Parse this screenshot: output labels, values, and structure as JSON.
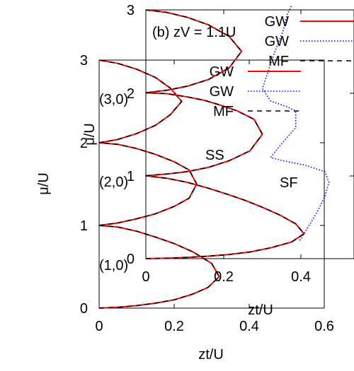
{
  "chart_data": [
    {
      "type": "line",
      "panel": "a",
      "xlabel": "zt/U",
      "ylabel": "μ/U",
      "xlim": [
        0,
        0.6
      ],
      "ylim": [
        0,
        3
      ],
      "xticks": [
        "0",
        "0.2",
        "0.4",
        "0.6"
      ],
      "yticks": [
        "0",
        "1",
        "2",
        "3"
      ],
      "annotations": [
        "(1,0)",
        "(2,0)",
        "(3,0)"
      ],
      "legend": {
        "placement": "top-right",
        "entries": [
          "GW",
          "GW",
          "MF"
        ]
      },
      "series": [
        {
          "name": "GW",
          "color": "#ff0000",
          "style": "solid",
          "lobes": [
            {
              "x": [
                0,
                0.05,
                0.1,
                0.15,
                0.2,
                0.25,
                0.29,
                0.32,
                0.3,
                0.25,
                0.2,
                0.15,
                0.1,
                0.05,
                0
              ],
              "y": [
                0,
                0.01,
                0.03,
                0.06,
                0.1,
                0.17,
                0.25,
                0.38,
                0.54,
                0.68,
                0.78,
                0.86,
                0.93,
                0.98,
                1.0
              ]
            },
            {
              "x": [
                0,
                0.05,
                0.1,
                0.15,
                0.2,
                0.24,
                0.26,
                0.24,
                0.2,
                0.15,
                0.1,
                0.05,
                0
              ],
              "y": [
                1.0,
                1.03,
                1.08,
                1.14,
                1.23,
                1.33,
                1.5,
                1.67,
                1.77,
                1.86,
                1.93,
                1.98,
                2.0
              ]
            },
            {
              "x": [
                0,
                0.05,
                0.1,
                0.15,
                0.19,
                0.22,
                0.19,
                0.15,
                0.1,
                0.05,
                0
              ],
              "y": [
                2.0,
                2.04,
                2.11,
                2.21,
                2.34,
                2.5,
                2.66,
                2.79,
                2.89,
                2.96,
                3.0
              ]
            }
          ]
        },
        {
          "name": "GW",
          "color": "#0000ff",
          "style": "dotted",
          "values": []
        },
        {
          "name": "MF",
          "color": "#000000",
          "style": "dashed",
          "lobes": [
            {
              "x": [
                0,
                0.05,
                0.1,
                0.15,
                0.2,
                0.25,
                0.29,
                0.32,
                0.3,
                0.25,
                0.2,
                0.15,
                0.1,
                0.05,
                0
              ],
              "y": [
                0,
                0.01,
                0.03,
                0.06,
                0.1,
                0.17,
                0.25,
                0.38,
                0.54,
                0.68,
                0.78,
                0.86,
                0.93,
                0.98,
                1.0
              ]
            },
            {
              "x": [
                0,
                0.05,
                0.1,
                0.15,
                0.2,
                0.24,
                0.26,
                0.24,
                0.2,
                0.15,
                0.1,
                0.05,
                0
              ],
              "y": [
                1.0,
                1.03,
                1.08,
                1.14,
                1.23,
                1.33,
                1.5,
                1.67,
                1.77,
                1.86,
                1.93,
                1.98,
                2.0
              ]
            },
            {
              "x": [
                0,
                0.05,
                0.1,
                0.15,
                0.19,
                0.22,
                0.19,
                0.15,
                0.1,
                0.05,
                0
              ],
              "y": [
                2.0,
                2.04,
                2.11,
                2.21,
                2.34,
                2.5,
                2.66,
                2.79,
                2.89,
                2.96,
                3.0
              ]
            }
          ]
        }
      ]
    },
    {
      "type": "line",
      "panel": "b",
      "title": "(b) zV = 1.1U",
      "xlabel": "zt/U",
      "ylabel": "μ/U",
      "xlim": [
        0,
        0.5
      ],
      "ylim": [
        0,
        3
      ],
      "xticks": [
        "0",
        "0.2",
        "0.4"
      ],
      "yticks": [
        "0",
        "1",
        "2",
        "3"
      ],
      "annotations": [
        "SS",
        "SF"
      ],
      "legend": {
        "placement": "top-right",
        "entries": [
          "GW",
          "GW",
          "MF"
        ]
      },
      "series": [
        {
          "name": "GW",
          "color": "#ff0000",
          "style": "solid",
          "lobes": [
            {
              "x": [
                0,
                0.05,
                0.1,
                0.15,
                0.2,
                0.25,
                0.3,
                0.35,
                0.38,
                0.36,
                0.32,
                0.28,
                0.24,
                0.2,
                0.15,
                0.1,
                0.05,
                0
              ],
              "y": [
                0,
                0.005,
                0.015,
                0.03,
                0.05,
                0.08,
                0.13,
                0.2,
                0.3,
                0.42,
                0.53,
                0.62,
                0.7,
                0.77,
                0.85,
                0.92,
                0.97,
                1.0
              ]
            },
            {
              "x": [
                0,
                0.05,
                0.1,
                0.15,
                0.2,
                0.25,
                0.28,
                0.26,
                0.22,
                0.18,
                0.14,
                0.1,
                0.05,
                0
              ],
              "y": [
                1.0,
                1.02,
                1.05,
                1.1,
                1.18,
                1.3,
                1.5,
                1.68,
                1.78,
                1.85,
                1.91,
                1.95,
                1.99,
                2.0
              ]
            },
            {
              "x": [
                0,
                0.05,
                0.1,
                0.15,
                0.2,
                0.23,
                0.2,
                0.15,
                0.1,
                0.05,
                0
              ],
              "y": [
                2.0,
                2.03,
                2.08,
                2.16,
                2.3,
                2.5,
                2.68,
                2.82,
                2.91,
                2.97,
                3.0
              ]
            }
          ]
        },
        {
          "name": "GW",
          "color": "#0000ff",
          "style": "dotted",
          "x": [
            0.37,
            0.41,
            0.43,
            0.44,
            0.43,
            0.38,
            0.33,
            0.3,
            0.32,
            0.36,
            0.36,
            0.34,
            0.3,
            0.28,
            0.29,
            0.31,
            0.33,
            0.34,
            0.35
          ],
          "y": [
            0.22,
            0.55,
            0.75,
            0.92,
            1.05,
            1.13,
            1.18,
            1.22,
            1.35,
            1.58,
            1.78,
            1.83,
            1.9,
            2.05,
            2.2,
            2.5,
            2.75,
            2.95,
            3.05
          ]
        },
        {
          "name": "MF",
          "color": "#000000",
          "style": "dashed",
          "lobes": [
            {
              "x": [
                0,
                0.05,
                0.1,
                0.15,
                0.2,
                0.25,
                0.3,
                0.35,
                0.38,
                0.36,
                0.32,
                0.28,
                0.24,
                0.2,
                0.15,
                0.1,
                0.05,
                0
              ],
              "y": [
                0,
                0.005,
                0.015,
                0.03,
                0.05,
                0.08,
                0.13,
                0.2,
                0.3,
                0.42,
                0.53,
                0.62,
                0.7,
                0.77,
                0.85,
                0.92,
                0.97,
                1.0
              ]
            },
            {
              "x": [
                0,
                0.05,
                0.1,
                0.15,
                0.2,
                0.25,
                0.28,
                0.26,
                0.22,
                0.18,
                0.14,
                0.1,
                0.05,
                0
              ],
              "y": [
                1.0,
                1.02,
                1.05,
                1.1,
                1.18,
                1.3,
                1.5,
                1.68,
                1.78,
                1.85,
                1.91,
                1.95,
                1.99,
                2.0
              ]
            },
            {
              "x": [
                0,
                0.05,
                0.1,
                0.15,
                0.2,
                0.23,
                0.2,
                0.15,
                0.1,
                0.05,
                0
              ],
              "y": [
                2.0,
                2.03,
                2.08,
                2.16,
                2.3,
                2.5,
                2.68,
                2.82,
                2.91,
                2.97,
                3.0
              ]
            }
          ]
        }
      ]
    }
  ]
}
